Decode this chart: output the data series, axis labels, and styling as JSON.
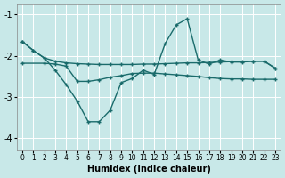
{
  "xlabel": "Humidex (Indice chaleur)",
  "bg_color": "#c8e8e8",
  "grid_color": "#ffffff",
  "line_color": "#1a6b6b",
  "xlim": [
    -0.5,
    23.5
  ],
  "ylim": [
    -4.3,
    -0.75
  ],
  "yticks": [
    -4,
    -3,
    -2,
    -1
  ],
  "xticks": [
    0,
    1,
    2,
    3,
    4,
    5,
    6,
    7,
    8,
    9,
    10,
    11,
    12,
    13,
    14,
    15,
    16,
    17,
    18,
    19,
    20,
    21,
    22,
    23
  ],
  "series1_x": [
    0,
    1,
    2,
    3,
    4,
    5,
    6,
    7,
    8,
    9,
    10,
    11,
    12,
    13,
    14,
    15,
    16,
    17,
    18,
    19,
    20,
    21,
    22,
    23
  ],
  "series1_y": [
    -1.65,
    -1.87,
    -2.05,
    -2.13,
    -2.17,
    -2.19,
    -2.2,
    -2.21,
    -2.21,
    -2.21,
    -2.21,
    -2.2,
    -2.2,
    -2.19,
    -2.18,
    -2.17,
    -2.17,
    -2.16,
    -2.15,
    -2.14,
    -2.14,
    -2.13,
    -2.13,
    -2.3
  ],
  "series2_x": [
    0,
    1,
    2,
    3,
    4,
    5,
    6,
    7,
    8,
    9,
    10,
    11,
    12,
    13,
    14,
    15,
    16,
    17,
    18,
    19,
    20,
    21,
    22,
    23
  ],
  "series2_y": [
    -1.65,
    -1.87,
    -2.05,
    -2.35,
    -2.7,
    -3.1,
    -3.6,
    -3.6,
    -3.32,
    -2.65,
    -2.55,
    -2.35,
    -2.45,
    -1.7,
    -1.25,
    -1.1,
    -2.1,
    -2.2,
    -2.1,
    -2.15,
    -2.15,
    -2.13,
    -2.13,
    -2.3
  ],
  "series3_x": [
    0,
    2,
    3,
    4,
    5,
    6,
    7,
    8,
    9,
    10,
    11,
    12,
    13,
    14,
    15,
    16,
    17,
    18,
    19,
    20,
    21,
    22,
    23
  ],
  "series3_y": [
    -2.18,
    -2.18,
    -2.2,
    -2.25,
    -2.62,
    -2.62,
    -2.58,
    -2.52,
    -2.48,
    -2.43,
    -2.42,
    -2.42,
    -2.44,
    -2.46,
    -2.48,
    -2.5,
    -2.53,
    -2.55,
    -2.56,
    -2.56,
    -2.57,
    -2.57,
    -2.57
  ]
}
